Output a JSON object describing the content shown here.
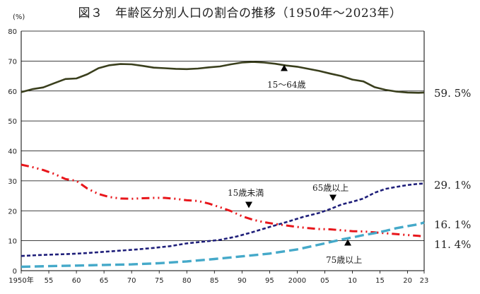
{
  "title": "図３　年齢区分別人口の割合の推移（1950年～2023年）",
  "unit_label": "(%)",
  "end_labels": {
    "age_15_64": "59. 5%",
    "age_65_over": "29. 1%",
    "age_75_over": "16. 1%",
    "age_under_15": "11. 4%"
  },
  "annotations": {
    "age_15_64": "15～64歳",
    "age_under_15": "15歳未満",
    "age_65_over": "65歳以上",
    "age_75_over": "75歳以上"
  },
  "colors": {
    "age_15_64": "#3a3f1d",
    "age_under_15": "#e8161b",
    "age_65_over": "#1f1f7a",
    "age_75_over": "#45a9c9",
    "grid": "#000000"
  },
  "chart_data": {
    "type": "line",
    "title": "図３　年齢区分別人口の割合の推移（1950年～2023年）",
    "ylabel": "(%)",
    "ylim": [
      0,
      80
    ],
    "yticks": [
      0,
      10,
      20,
      30,
      40,
      50,
      60,
      70,
      80
    ],
    "xlim": [
      1950,
      2023
    ],
    "xtick_values": [
      1950,
      1955,
      1960,
      1965,
      1970,
      1975,
      1980,
      1985,
      1990,
      1995,
      2000,
      2005,
      2010,
      2015,
      2020,
      2023
    ],
    "xtick_labels": [
      "1950年",
      "55",
      "60",
      "65",
      "70",
      "75",
      "80",
      "85",
      "90",
      "95",
      "2000",
      "05",
      "10",
      "15",
      "20",
      "23"
    ],
    "grid": true,
    "series": [
      {
        "key": "age_15_64",
        "name": "15～64歳",
        "style": "solid",
        "x": [
          1950,
          1952,
          1954,
          1956,
          1958,
          1960,
          1962,
          1964,
          1966,
          1968,
          1970,
          1972,
          1974,
          1976,
          1978,
          1980,
          1982,
          1984,
          1986,
          1988,
          1990,
          1992,
          1994,
          1996,
          1998,
          2000,
          2002,
          2004,
          2006,
          2008,
          2010,
          2012,
          2014,
          2016,
          2018,
          2020,
          2022,
          2023
        ],
        "y": [
          59.6,
          60.6,
          61.2,
          62.6,
          64.0,
          64.2,
          65.6,
          67.6,
          68.6,
          69.0,
          68.9,
          68.4,
          67.8,
          67.6,
          67.4,
          67.3,
          67.5,
          67.9,
          68.2,
          68.9,
          69.5,
          69.7,
          69.5,
          69.1,
          68.5,
          68.1,
          67.4,
          66.7,
          65.8,
          65.0,
          63.8,
          63.2,
          61.3,
          60.4,
          59.8,
          59.5,
          59.4,
          59.5
        ],
        "end_value": 59.5
      },
      {
        "key": "age_under_15",
        "name": "15歳未満",
        "style": "dash-dot-dot",
        "x": [
          1950,
          1952,
          1954,
          1956,
          1958,
          1960,
          1962,
          1964,
          1966,
          1968,
          1970,
          1972,
          1974,
          1976,
          1978,
          1980,
          1982,
          1984,
          1986,
          1988,
          1990,
          1992,
          1994,
          1996,
          1998,
          2000,
          2002,
          2004,
          2006,
          2008,
          2010,
          2012,
          2014,
          2016,
          2018,
          2020,
          2022,
          2023
        ],
        "y": [
          35.4,
          34.6,
          33.6,
          32.3,
          30.6,
          30.0,
          27.4,
          25.6,
          24.6,
          24.1,
          24.0,
          24.2,
          24.3,
          24.3,
          24.0,
          23.5,
          23.3,
          22.4,
          21.2,
          19.9,
          18.2,
          17.0,
          16.2,
          15.6,
          15.1,
          14.6,
          14.2,
          13.9,
          13.8,
          13.5,
          13.2,
          13.1,
          12.8,
          12.5,
          12.2,
          11.9,
          11.6,
          11.4
        ],
        "end_value": 11.4
      },
      {
        "key": "age_65_over",
        "name": "65歳以上",
        "style": "short-dash",
        "x": [
          1950,
          1953,
          1956,
          1959,
          1962,
          1965,
          1968,
          1971,
          1974,
          1977,
          1980,
          1983,
          1986,
          1989,
          1992,
          1995,
          1998,
          2001,
          2004,
          2006,
          2008,
          2010,
          2012,
          2014,
          2016,
          2018,
          2020,
          2022,
          2023
        ],
        "y": [
          4.9,
          5.2,
          5.4,
          5.6,
          5.9,
          6.3,
          6.7,
          7.1,
          7.6,
          8.2,
          9.1,
          9.7,
          10.3,
          11.4,
          12.9,
          14.6,
          16.2,
          17.9,
          19.3,
          20.6,
          22.1,
          23.0,
          24.1,
          26.0,
          27.3,
          28.0,
          28.6,
          29.0,
          29.1
        ],
        "end_value": 29.1
      },
      {
        "key": "age_75_over",
        "name": "75歳以上",
        "style": "long-dash",
        "x": [
          1950,
          1955,
          1960,
          1965,
          1970,
          1975,
          1980,
          1985,
          1990,
          1995,
          2000,
          2005,
          2008,
          2010,
          2012,
          2014,
          2016,
          2018,
          2020,
          2022,
          2023
        ],
        "y": [
          1.3,
          1.5,
          1.7,
          1.9,
          2.1,
          2.5,
          3.1,
          3.9,
          4.8,
          5.7,
          7.1,
          9.1,
          10.4,
          11.1,
          11.9,
          12.5,
          13.3,
          14.2,
          14.9,
          15.5,
          16.1
        ],
        "end_value": 16.1
      }
    ]
  }
}
